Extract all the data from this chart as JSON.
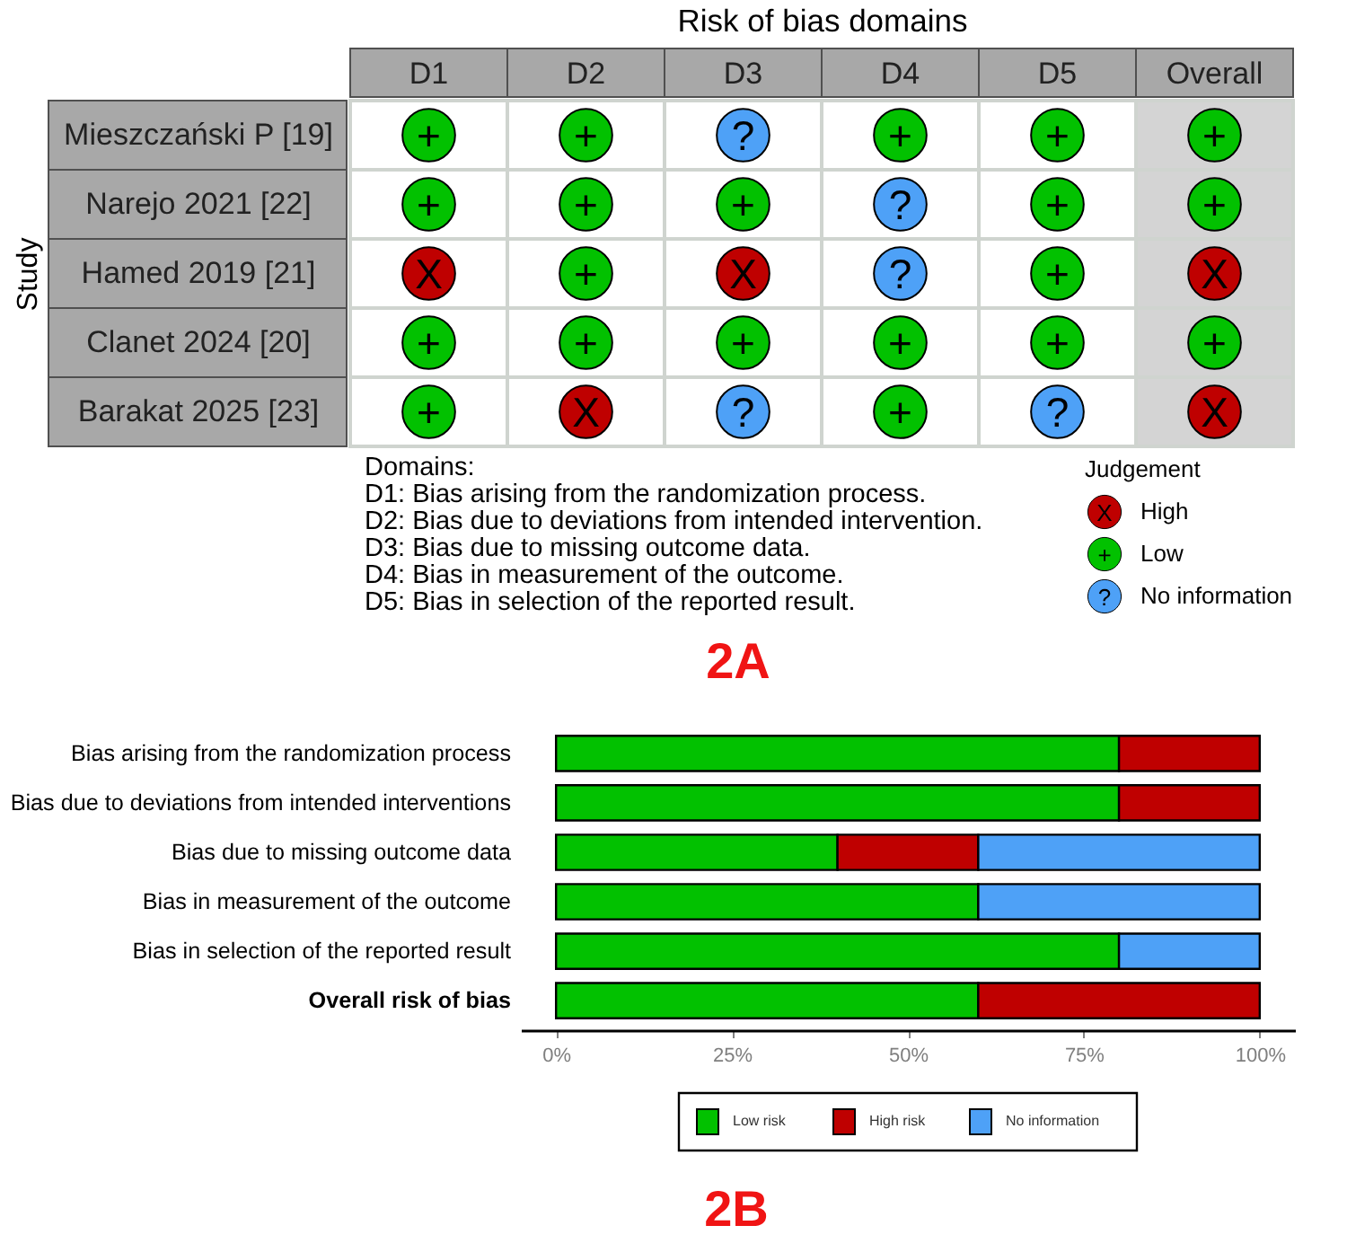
{
  "chart_data": [
    {
      "type": "heatmap",
      "xlabel": "Risk of bias domains",
      "ylabel": "Study",
      "categories": [
        "D1",
        "D2",
        "D3",
        "D4",
        "D5",
        "Overall"
      ],
      "y_categories": [
        "Mieszczański P [19]",
        "Narejo 2021 [22]",
        "Hamed 2019 [21]",
        "Clanet 2024 [20]",
        "Barakat 2025 [23]"
      ],
      "cells": [
        [
          null,
          null,
          null,
          null,
          null,
          null
        ],
        [
          null,
          null,
          null,
          null,
          null,
          null
        ],
        [
          null,
          null,
          null,
          null,
          null,
          null
        ],
        [
          null,
          null,
          null,
          null,
          null,
          null
        ],
        [
          null,
          null,
          null,
          null,
          null,
          null
        ]
      ],
      "cell_labels": [
        [
          "+",
          "+",
          "?",
          "+",
          "+",
          "+"
        ],
        [
          "+",
          "+",
          "+",
          "?",
          "+",
          "+"
        ],
        [
          "X",
          "+",
          "X",
          "?",
          "+",
          "X"
        ],
        [
          "+",
          "+",
          "+",
          "+",
          "+",
          "+"
        ],
        [
          "+",
          "X",
          "?",
          "+",
          "?",
          "X"
        ]
      ],
      "colors": [
        [
          "#02c100",
          "#02c100",
          "#4ea1f7",
          "#02c100",
          "#02c100",
          "#02c100"
        ],
        [
          "#02c100",
          "#02c100",
          "#02c100",
          "#4ea1f7",
          "#02c100",
          "#02c100"
        ],
        [
          "#bf0000",
          "#02c100",
          "#bf0000",
          "#4ea1f7",
          "#02c100",
          "#bf0000"
        ],
        [
          "#02c100",
          "#02c100",
          "#02c100",
          "#02c100",
          "#02c100",
          "#02c100"
        ],
        [
          "#02c100",
          "#bf0000",
          "#4ea1f7",
          "#02c100",
          "#4ea1f7",
          "#bf0000"
        ]
      ],
      "legend_title": "Judgement",
      "legend": "bottom right",
      "series": [
        {
          "name": "High",
          "color": "#bf0000",
          "values": [
            null,
            null,
            null,
            null,
            null,
            null
          ]
        },
        {
          "name": "Low",
          "color": "#02c100",
          "values": [
            null,
            null,
            null,
            null,
            null,
            null
          ]
        },
        {
          "name": "No information",
          "color": "#4ea1f7",
          "values": [
            null,
            null,
            null,
            null,
            null,
            null
          ]
        }
      ],
      "bands": [
        {
          "axis": "x",
          "from": "Overall",
          "to": "Overall",
          "color": "#d4d4d4"
        }
      ],
      "annotations": [
        "Domains:",
        "D1: Bias arising from the randomization process.",
        "D2: Bias due to deviations from intended intervention.",
        "D3: Bias due to missing outcome data.",
        "D4: Bias in measurement of the outcome.",
        "D5: Bias in selection of the reported result.",
        "2A"
      ]
    },
    {
      "type": "bar",
      "orientation": "horizontal",
      "stacked": true,
      "categories": [
        "Bias arising from the randomization process",
        "Bias due to deviations from intended interventions",
        "Bias due to missing outcome data",
        "Bias in measurement of the outcome",
        "Bias in selection of the reported result",
        "Overall risk of bias"
      ],
      "series": [
        {
          "name": "Low risk",
          "color": "#02c100",
          "values": [
            80,
            80,
            40,
            60,
            80,
            60
          ]
        },
        {
          "name": "High risk",
          "color": "#bf0000",
          "values": [
            20,
            20,
            20,
            0,
            0,
            40
          ]
        },
        {
          "name": "No information",
          "color": "#4ea1f7",
          "values": [
            0,
            0,
            40,
            40,
            20,
            0
          ]
        }
      ],
      "xlim": [
        -5,
        105
      ],
      "xticks": [
        {
          "value": 0,
          "label": "0%"
        },
        {
          "value": 25,
          "label": "25%"
        },
        {
          "value": 50,
          "label": "50%"
        },
        {
          "value": 75,
          "label": "75%"
        },
        {
          "value": 100,
          "label": "100%"
        }
      ],
      "grid": false,
      "legend": "bottom",
      "annotations": [
        "2B"
      ]
    }
  ]
}
